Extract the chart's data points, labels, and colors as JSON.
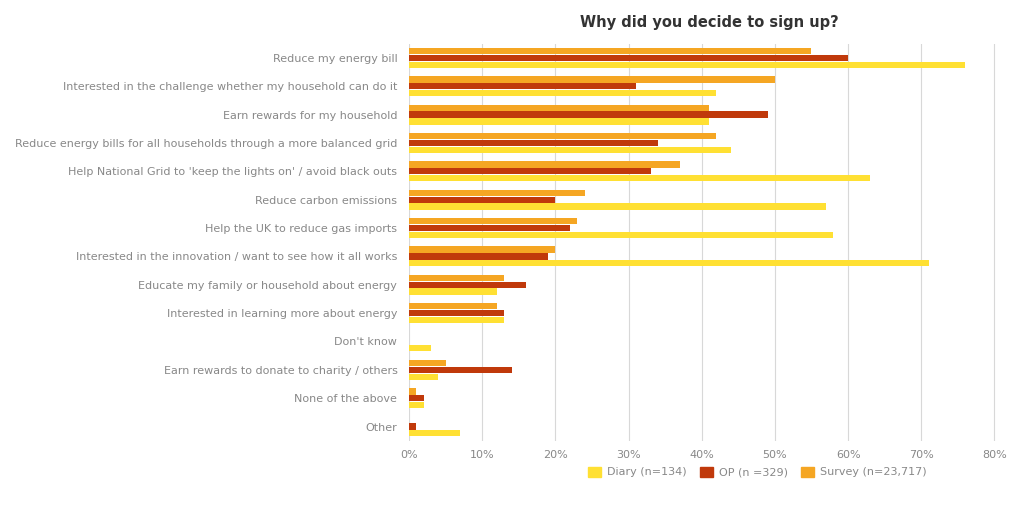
{
  "title": "Why did you decide to sign up?",
  "categories": [
    "Reduce my energy bill",
    "Interested in the challenge whether my household can do it",
    "Earn rewards for my household",
    "Reduce energy bills for all households through a more balanced grid",
    "Help National Grid to 'keep the lights on' / avoid black outs",
    "Reduce carbon emissions",
    "Help the UK to reduce gas imports",
    "Interested in the innovation / want to see how it all works",
    "Educate my family or household about energy",
    "Interested in learning more about energy",
    "Don't know",
    "Earn rewards to donate to charity / others",
    "None of the above",
    "Other"
  ],
  "survey": [
    55,
    50,
    41,
    42,
    37,
    24,
    23,
    20,
    13,
    12,
    0,
    5,
    1,
    0
  ],
  "op": [
    60,
    31,
    49,
    34,
    33,
    20,
    22,
    19,
    16,
    13,
    0,
    14,
    2,
    1
  ],
  "diary": [
    76,
    42,
    41,
    44,
    63,
    57,
    58,
    71,
    12,
    13,
    3,
    4,
    2,
    7
  ],
  "diary_color": "#FFE033",
  "op_color": "#C0390B",
  "survey_color": "#F5A623",
  "legend_labels": [
    "Diary (n=134)",
    "OP (n =329)",
    "Survey (n=23,717)"
  ],
  "xlim": [
    0,
    82
  ],
  "xticks": [
    0,
    10,
    20,
    30,
    40,
    50,
    60,
    70,
    80
  ],
  "background_color": "#ffffff",
  "grid_color": "#d8d8d8",
  "bar_height": 0.22,
  "bar_gap": 0.02,
  "title_fontsize": 10.5,
  "label_fontsize": 8,
  "tick_fontsize": 8,
  "legend_fontsize": 8
}
